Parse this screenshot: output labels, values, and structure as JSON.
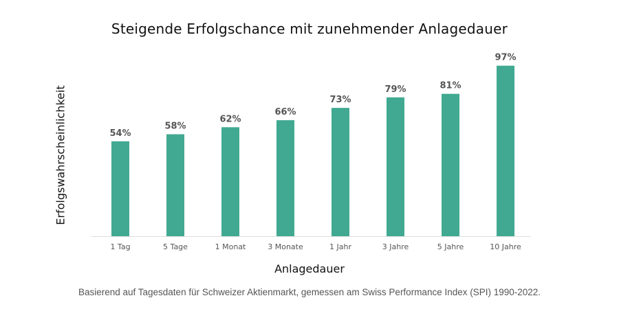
{
  "chart_data": {
    "type": "bar",
    "title": "Steigende Erfolgschance mit zunehmender Anlagedauer",
    "xlabel": "Anlagedauer",
    "ylabel": "Erfolgswahrscheinlichkeit",
    "categories": [
      "1 Tag",
      "5 Tage",
      "1 Monat",
      "3 Monate",
      "1 Jahr",
      "3 Jahre",
      "5 Jahre",
      "10 Jahre"
    ],
    "values": [
      54,
      58,
      62,
      66,
      73,
      79,
      81,
      97
    ],
    "value_labels": [
      "54%",
      "58%",
      "62%",
      "66%",
      "73%",
      "79%",
      "81%",
      "97%"
    ],
    "ylim": [
      0,
      100
    ],
    "grid": false,
    "bar_color": "#41a991",
    "axis_color": "#dddddd"
  },
  "footer": {
    "note": "Basierend auf Tagesdaten für Schweizer Aktienmarkt, gemessen am Swiss Performance Index (SPI) 1990-2022."
  }
}
